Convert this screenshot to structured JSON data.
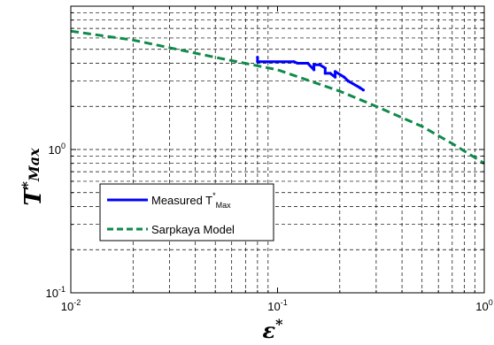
{
  "chart_data": {
    "type": "line",
    "x_scale": "log",
    "y_scale": "log",
    "xlim": [
      0.01,
      1
    ],
    "ylim": [
      0.1,
      10
    ],
    "grid": true,
    "legend_position": "bottom-left",
    "x_ticks": [
      {
        "value": 0.01,
        "base": "10",
        "exp": "-2"
      },
      {
        "value": 0.1,
        "base": "10",
        "exp": "-1"
      },
      {
        "value": 1,
        "base": "10",
        "exp": "0"
      }
    ],
    "y_ticks": [
      {
        "value": 0.1,
        "base": "10",
        "exp": "-1"
      },
      {
        "value": 1,
        "base": "10",
        "exp": "0"
      }
    ],
    "xlabel": {
      "main": "ε",
      "sup": "*"
    },
    "ylabel": {
      "main": "T",
      "sup": "*",
      "sub": "Max"
    },
    "series": [
      {
        "name": "Measured T",
        "name_sup": "*",
        "name_sub": "Max",
        "color": "#0000ff",
        "style": "solid",
        "x": [
          0.08,
          0.08,
          0.12,
          0.125,
          0.14,
          0.15,
          0.15,
          0.16,
          0.17,
          0.17,
          0.18,
          0.19,
          0.19,
          0.21,
          0.22,
          0.22,
          0.25,
          0.26
        ],
        "y": [
          4.4,
          4.1,
          4.1,
          4.0,
          4.0,
          3.6,
          3.9,
          3.9,
          3.7,
          3.4,
          3.4,
          3.2,
          3.5,
          3.2,
          3.0,
          3.0,
          2.7,
          2.6
        ]
      },
      {
        "name": "Sarpkaya Model",
        "color": "#0e8a4a",
        "style": "dashed",
        "x": [
          0.01,
          0.02,
          0.05,
          0.1,
          0.2,
          0.3,
          0.5,
          0.7,
          1.0
        ],
        "y": [
          6.7,
          5.8,
          4.4,
          3.6,
          2.55,
          2.0,
          1.45,
          1.1,
          0.8
        ]
      }
    ]
  }
}
